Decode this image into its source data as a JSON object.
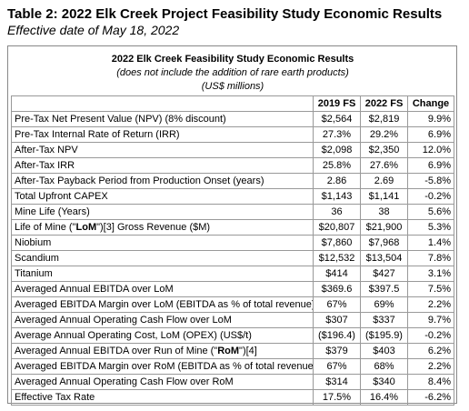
{
  "header": {
    "title": "Table 2: 2022 Elk Creek Project Feasibility Study Economic Results",
    "subtitle": "Effective date of May 18, 2022"
  },
  "table": {
    "caption": [
      "2022 Elk Creek Feasibility Study Economic Results",
      "(does not include the addition of rare earth products)",
      "(US$ millions)"
    ],
    "columns": [
      "2019 FS",
      "2022 FS",
      "Change"
    ],
    "rows": [
      {
        "label": [
          "Pre-Tax Net Present Value (NPV) (8% discount)"
        ],
        "values": [
          "$2,564",
          "$2,819",
          "9.9%"
        ]
      },
      {
        "label": [
          "Pre-Tax Internal Rate of Return (IRR)"
        ],
        "values": [
          "27.3%",
          "29.2%",
          "6.9%"
        ]
      },
      {
        "label": [
          "After-Tax NPV"
        ],
        "values": [
          "$2,098",
          "$2,350",
          "12.0%"
        ]
      },
      {
        "label": [
          "After-Tax IRR"
        ],
        "values": [
          "25.8%",
          "27.6%",
          "6.9%"
        ]
      },
      {
        "label": [
          "After-Tax Payback Period from Production Onset (years)"
        ],
        "values": [
          "2.86",
          "2.69",
          "-5.8%"
        ]
      },
      {
        "label": [
          "Total Upfront CAPEX"
        ],
        "values": [
          "$1,143",
          "$1,141",
          "-0.2%"
        ]
      },
      {
        "label": [
          "Mine Life (Years)"
        ],
        "values": [
          "36",
          "38",
          "5.6%"
        ]
      },
      {
        "label": [
          "Life of Mine (\"",
          "LoM",
          "\")[3] Gross Revenue ($M)"
        ],
        "values": [
          "$20,807",
          "$21,900",
          "5.3%"
        ]
      },
      {
        "label": [
          "Niobium"
        ],
        "values": [
          "$7,860",
          "$7,968",
          "1.4%"
        ]
      },
      {
        "label": [
          "Scandium"
        ],
        "values": [
          "$12,532",
          "$13,504",
          "7.8%"
        ]
      },
      {
        "label": [
          "Titanium"
        ],
        "values": [
          "$414",
          "$427",
          "3.1%"
        ]
      },
      {
        "label": [
          "Averaged Annual EBITDA over LoM"
        ],
        "values": [
          "$369.6",
          "$397.5",
          "7.5%"
        ]
      },
      {
        "label": [
          "Averaged EBITDA Margin over LoM (EBITDA as % of total revenue)"
        ],
        "values": [
          "67%",
          "69%",
          "2.2%"
        ]
      },
      {
        "label": [
          "Averaged Annual Operating Cash Flow over LoM"
        ],
        "values": [
          "$307",
          "$337",
          "9.7%"
        ]
      },
      {
        "label": [
          "Average Annual Operating Cost, LoM (OPEX) (US$/t)"
        ],
        "values": [
          "($196.4)",
          "($195.9)",
          "-0.2%"
        ]
      },
      {
        "label": [
          "Averaged Annual EBITDA over Run of Mine (\"",
          "RoM",
          "\")[4]"
        ],
        "values": [
          "$379",
          "$403",
          "6.2%"
        ]
      },
      {
        "label": [
          "Averaged EBITDA Margin over RoM (EBITDA as % of total revenue)"
        ],
        "values": [
          "67%",
          "68%",
          "2.2%"
        ]
      },
      {
        "label": [
          "Averaged Annual Operating Cash Flow over RoM"
        ],
        "values": [
          "$314",
          "$340",
          "8.4%"
        ]
      },
      {
        "label": [
          "Effective Tax Rate"
        ],
        "values": [
          "17.5%",
          "16.4%",
          "-6.2%"
        ]
      }
    ]
  }
}
